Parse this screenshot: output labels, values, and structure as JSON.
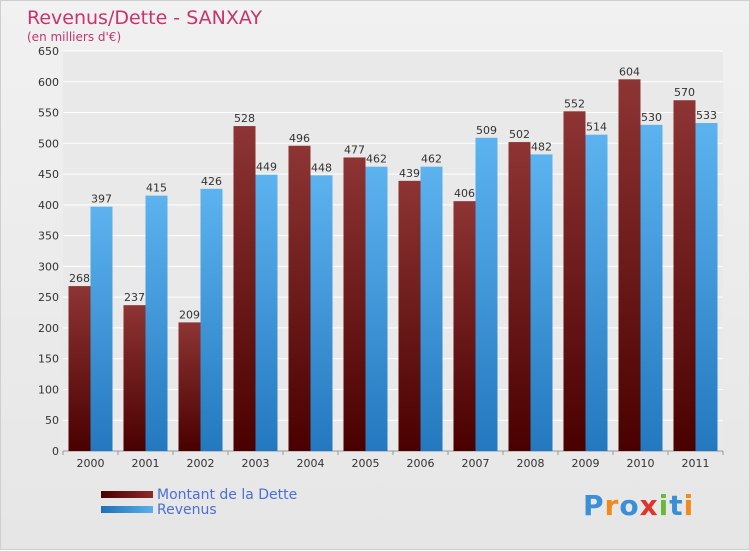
{
  "header": {
    "title": "Revenus/Dette - SANXAY",
    "subtitle": "(en milliers d'€)"
  },
  "legend": {
    "items": [
      {
        "label": "Montant de la Dette",
        "color": "#7a2020"
      },
      {
        "label": "Revenus",
        "color": "#4aa3e6"
      }
    ]
  },
  "logo": {
    "text": "Proxiti"
  },
  "chart_data": {
    "type": "bar",
    "title": "Revenus/Dette - SANXAY",
    "subtitle": "(en milliers d'€)",
    "xlabel": "",
    "ylabel": "",
    "categories": [
      "2000",
      "2001",
      "2002",
      "2003",
      "2004",
      "2005",
      "2006",
      "2007",
      "2008",
      "2009",
      "2010",
      "2011"
    ],
    "series": [
      {
        "name": "Montant de la Dette",
        "color": "#7a2020",
        "values": [
          268,
          237,
          209,
          528,
          496,
          477,
          439,
          406,
          502,
          552,
          604,
          570
        ]
      },
      {
        "name": "Revenus",
        "color": "#4aa3e6",
        "values": [
          397,
          415,
          426,
          449,
          448,
          462,
          462,
          509,
          482,
          514,
          530,
          533
        ]
      }
    ],
    "ylim": [
      0,
      650
    ],
    "yticks": [
      0,
      50,
      100,
      150,
      200,
      250,
      300,
      350,
      400,
      450,
      500,
      550,
      600,
      650
    ],
    "grid": true,
    "legend_position": "bottom-left"
  }
}
